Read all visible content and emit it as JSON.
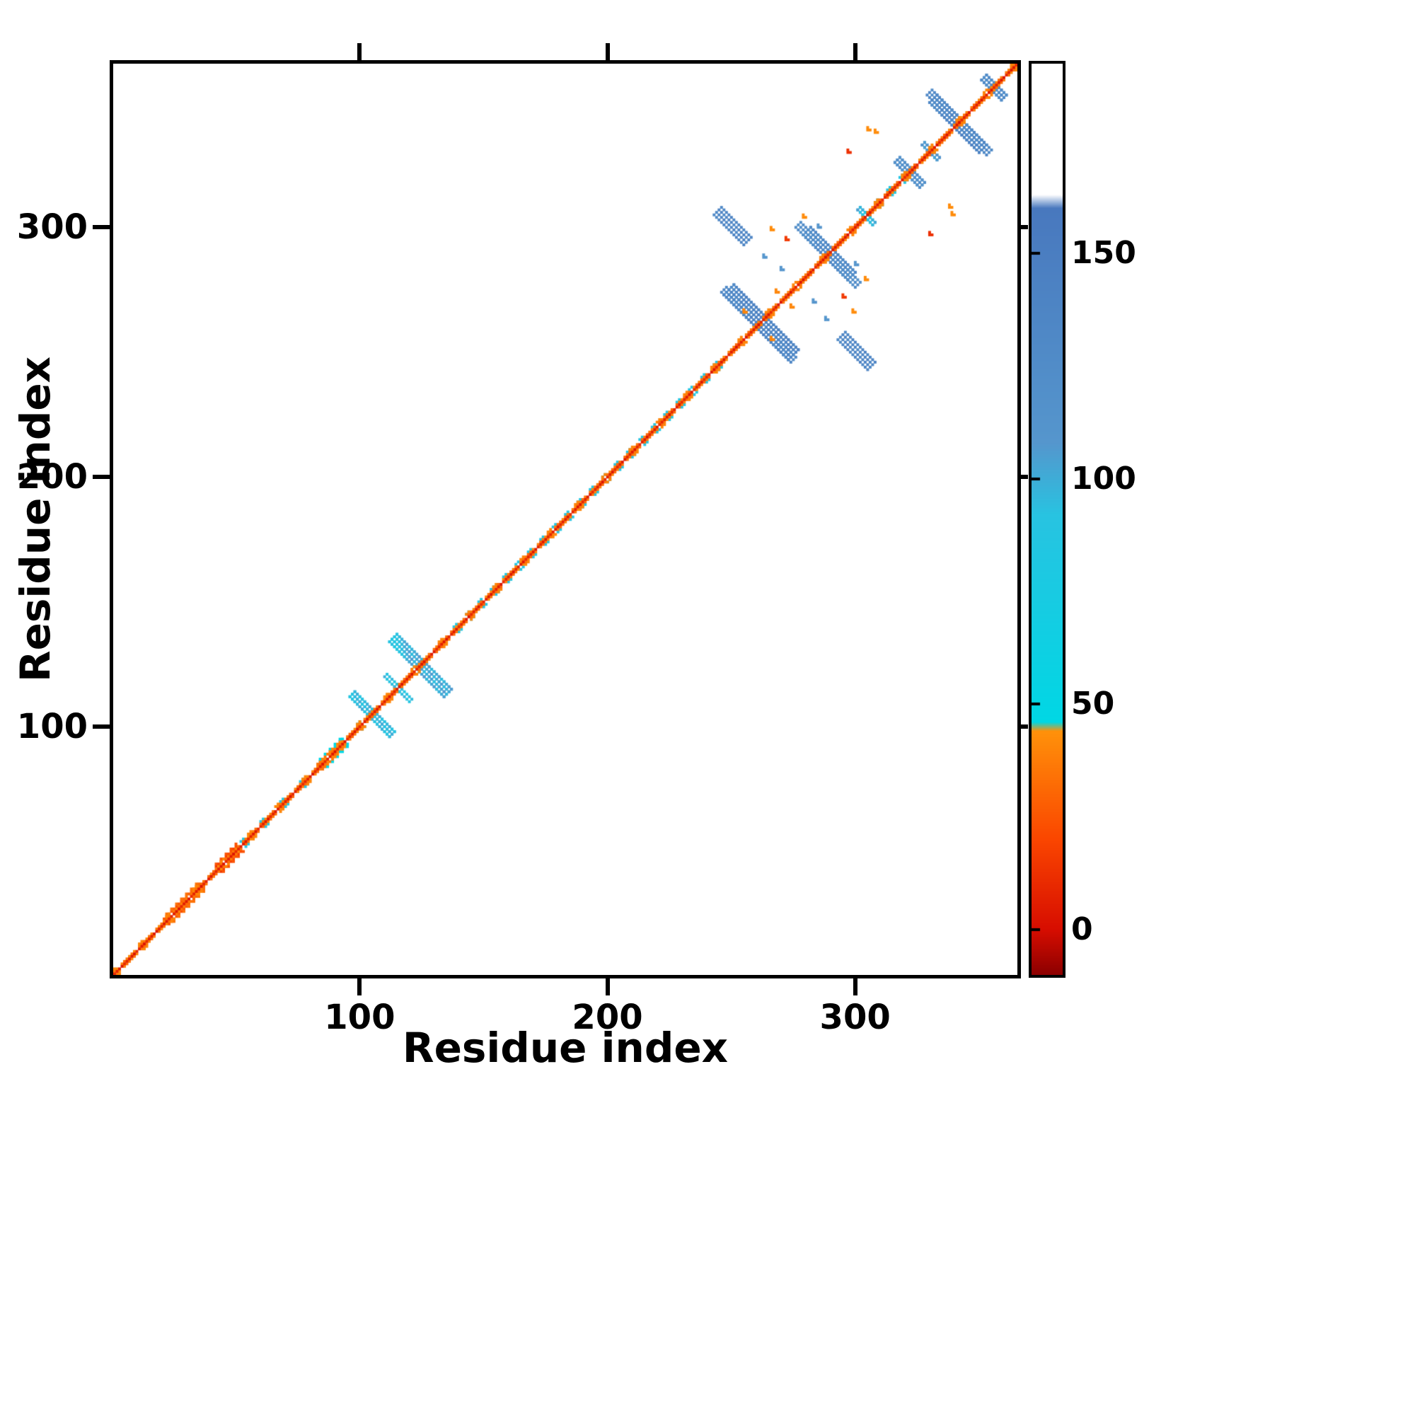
{
  "figure": {
    "background": "#ffffff",
    "frame_color": "#000000",
    "text_color": "#000000"
  },
  "chart_data": {
    "type": "heatmap",
    "title": "",
    "xlabel": "Residue index",
    "ylabel": "Residue index",
    "xlim": [
      1,
      365
    ],
    "ylim": [
      1,
      365
    ],
    "xticks": [
      100,
      200,
      300
    ],
    "yticks": [
      100,
      200,
      300
    ],
    "grid": false,
    "legend_position": "none",
    "colorbar": {
      "range": [
        -10,
        192
      ],
      "ticks": [
        0,
        50,
        100,
        150
      ],
      "stops": [
        {
          "v": -10,
          "c": "#8c0000"
        },
        {
          "v": 0,
          "c": "#d70d00"
        },
        {
          "v": 20,
          "c": "#fa4600"
        },
        {
          "v": 44,
          "c": "#ff910a"
        },
        {
          "v": 46,
          "c": "#00d7e4"
        },
        {
          "v": 92,
          "c": "#28c3e1"
        },
        {
          "v": 108,
          "c": "#5596cd"
        },
        {
          "v": 160,
          "c": "#4878be"
        },
        {
          "v": 163,
          "c": "#ffffff"
        },
        {
          "v": 192,
          "c": "#ffffff"
        }
      ]
    },
    "diagonal": {
      "from": 1,
      "to": 365,
      "core_value": 2,
      "flank_value": 30,
      "accent_value": 40
    },
    "diagonal_specks": {
      "value": 90,
      "offset": 2,
      "residues": [
        52,
        60,
        68,
        76,
        84,
        92,
        99,
        138,
        143,
        148,
        153,
        158,
        163,
        168,
        173,
        178,
        183,
        188,
        193,
        198,
        203,
        208,
        213,
        218,
        223,
        228,
        233,
        238,
        243,
        303,
        308,
        313,
        318
      ]
    },
    "thick_segments": [
      {
        "center": 28,
        "len": 14,
        "value": 28
      },
      {
        "center": 46,
        "len": 8,
        "value": 18
      },
      {
        "center": 88,
        "len": 10,
        "value": 40
      }
    ],
    "streaks": [
      {
        "i": 105,
        "j": 105,
        "len": 16,
        "thick": 3,
        "value": 95
      },
      {
        "i": 125,
        "j": 125,
        "len": 22,
        "thick": 4,
        "value": 100
      },
      {
        "i": 118,
        "j": 114,
        "len": 6,
        "thick": 2,
        "value": 92
      },
      {
        "i": 262,
        "j": 262,
        "len": 26,
        "thick": 5,
        "value": 140
      },
      {
        "i": 270,
        "j": 252,
        "len": 10,
        "thick": 3,
        "value": 132
      },
      {
        "i": 251,
        "j": 301,
        "len": 12,
        "thick": 4,
        "value": 136
      },
      {
        "i": 290,
        "j": 290,
        "len": 18,
        "thick": 4,
        "value": 130
      },
      {
        "i": 297,
        "j": 281,
        "len": 8,
        "thick": 3,
        "value": 122
      },
      {
        "i": 322,
        "j": 322,
        "len": 10,
        "thick": 3,
        "value": 118
      },
      {
        "i": 331,
        "j": 331,
        "len": 6,
        "thick": 2,
        "value": 108
      },
      {
        "i": 305,
        "j": 305,
        "len": 6,
        "thick": 2,
        "value": 98
      },
      {
        "i": 342,
        "j": 342,
        "len": 20,
        "thick": 4,
        "value": 140
      },
      {
        "i": 349,
        "j": 335,
        "len": 10,
        "thick": 3,
        "value": 130
      },
      {
        "i": 356,
        "j": 356,
        "len": 8,
        "thick": 3,
        "value": 125
      }
    ],
    "dots": [
      {
        "i": 266,
        "j": 299,
        "value": 42
      },
      {
        "i": 272,
        "j": 295,
        "value": 15
      },
      {
        "i": 279,
        "j": 304,
        "value": 42
      },
      {
        "i": 285,
        "j": 300,
        "value": 110
      },
      {
        "i": 263,
        "j": 288,
        "value": 108
      },
      {
        "i": 270,
        "j": 283,
        "value": 112
      },
      {
        "i": 297,
        "j": 330,
        "value": 12
      },
      {
        "i": 305,
        "j": 339,
        "value": 42
      },
      {
        "i": 308,
        "j": 338,
        "value": 42
      },
      {
        "i": 255,
        "j": 266,
        "value": 40
      },
      {
        "i": 268,
        "j": 274,
        "value": 40
      }
    ]
  }
}
